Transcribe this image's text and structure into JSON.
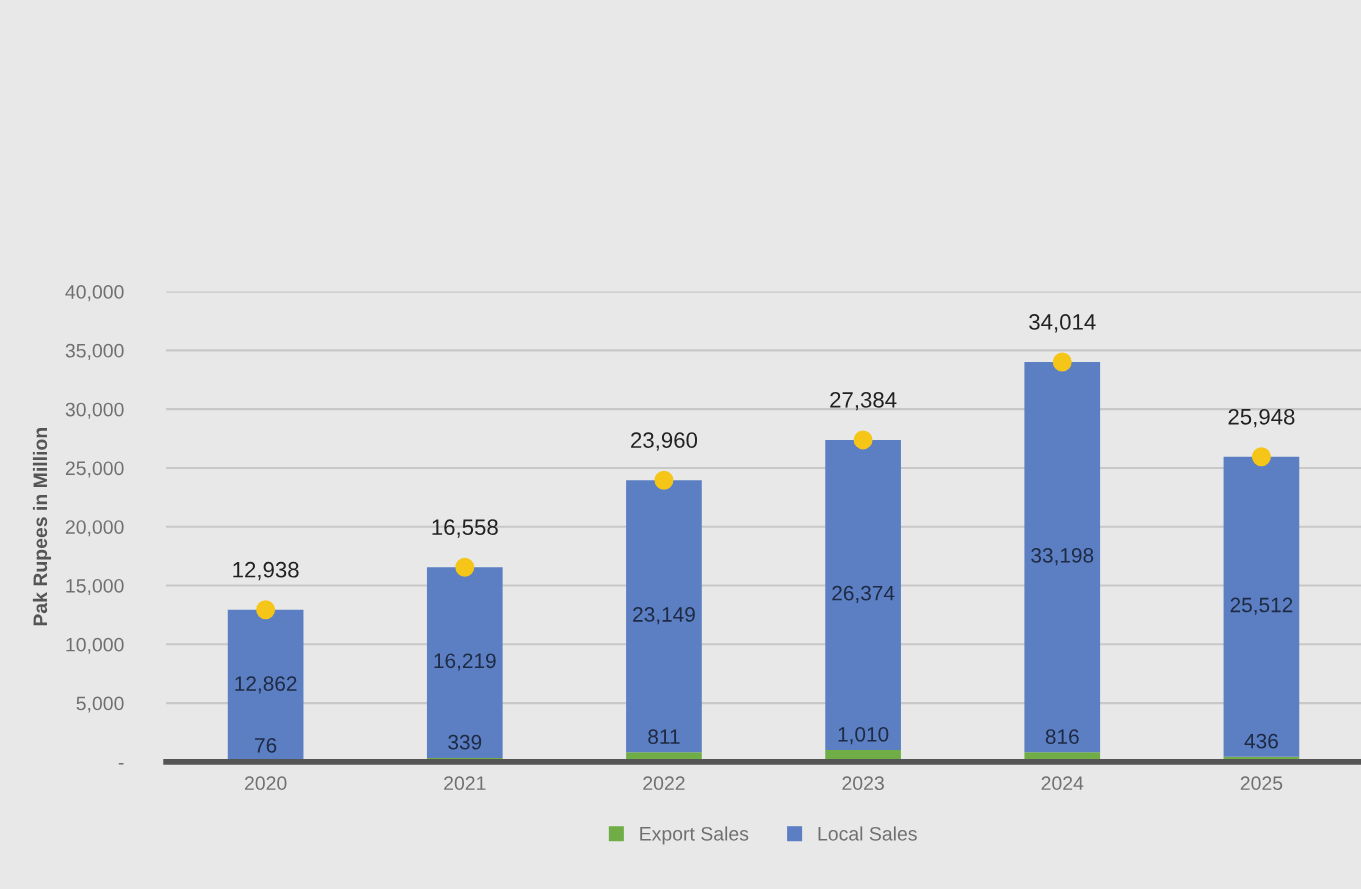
{
  "chart_data": {
    "type": "bar",
    "stacked": true,
    "ylabel": "Pak Rupees in Million",
    "categories": [
      "2020",
      "2021",
      "2022",
      "2023",
      "2024",
      "2025"
    ],
    "series": [
      {
        "name": "Export Sales",
        "color": "#70ad47",
        "values": [
          76,
          339,
          811,
          1010,
          816,
          436
        ],
        "value_labels": [
          "76",
          "339",
          "811",
          "1,010",
          "816",
          "436"
        ]
      },
      {
        "name": "Local Sales",
        "color": "#5b7fc2",
        "values": [
          12862,
          16219,
          23149,
          26374,
          33198,
          25512
        ],
        "value_labels": [
          "12,862",
          "16,219",
          "23,149",
          "26,374",
          "33,198",
          "25,512"
        ]
      },
      {
        "type": "scatter",
        "color": "#f5c518",
        "values": [
          12938,
          16558,
          23960,
          27384,
          34014,
          25948
        ],
        "value_labels": [
          "12,938",
          "16,558",
          "23,960",
          "27,384",
          "34,014",
          "25,948"
        ]
      }
    ],
    "ylim": [
      0,
      40000
    ],
    "yticks": [
      {
        "value": 0,
        "label": "-"
      },
      {
        "value": 5000,
        "label": "5,000"
      },
      {
        "value": 10000,
        "label": "10,000"
      },
      {
        "value": 15000,
        "label": "15,000"
      },
      {
        "value": 20000,
        "label": "20,000"
      },
      {
        "value": 25000,
        "label": "25,000"
      },
      {
        "value": 30000,
        "label": "30,000"
      },
      {
        "value": 35000,
        "label": "35,000"
      },
      {
        "value": 40000,
        "label": "40,000"
      }
    ],
    "grid": "y",
    "legend": "bottom",
    "marker": "circle"
  }
}
